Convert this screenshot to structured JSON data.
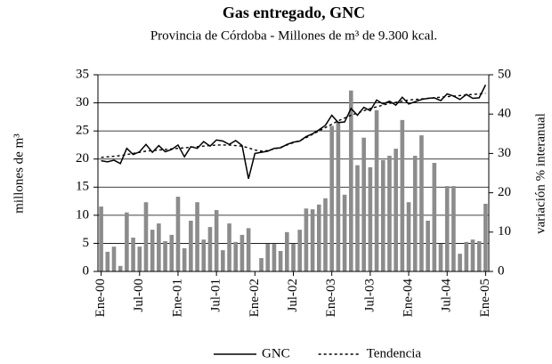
{
  "chart_data": {
    "type": "bar-line",
    "title": "Gas entregado, GNC",
    "subtitle": "Provincia de Córdoba - Millones de m³ de 9.300 kcal.",
    "ylabel": "millones de m³",
    "y2label": "variación % interanual",
    "categories": [
      "Ene-00",
      null,
      null,
      null,
      null,
      null,
      "Jul-00",
      null,
      null,
      null,
      null,
      null,
      "Ene-01",
      null,
      null,
      null,
      null,
      null,
      "Jul-01",
      null,
      null,
      null,
      null,
      null,
      "Ene-02",
      null,
      null,
      null,
      null,
      null,
      "Jul-02",
      null,
      null,
      null,
      null,
      null,
      "Ene-03",
      null,
      null,
      null,
      null,
      null,
      "Jul-03",
      null,
      null,
      null,
      null,
      null,
      "Ene-04",
      null,
      null,
      null,
      null,
      null,
      "Jul-04",
      null,
      null,
      null,
      null,
      null,
      "Ene-05"
    ],
    "series": [
      {
        "name": "GNC",
        "type": "line",
        "color": "#000000",
        "dash": "solid",
        "values": [
          19.7,
          19.5,
          19.8,
          19.2,
          21.9,
          20.8,
          21.3,
          22.6,
          21.2,
          22.4,
          21.3,
          21.7,
          22.5,
          20.4,
          22.2,
          21.9,
          23.1,
          22.3,
          23.4,
          23.2,
          22.6,
          23.3,
          22.4,
          16.5,
          21.0,
          21.2,
          21.4,
          21.9,
          22.0,
          22.6,
          23.0,
          23.2,
          24.0,
          24.5,
          25.2,
          26.0,
          27.8,
          26.5,
          26.6,
          29.0,
          27.8,
          29.2,
          28.6,
          30.5,
          29.8,
          30.3,
          29.6,
          31.0,
          29.8,
          30.2,
          30.6,
          30.8,
          30.9,
          30.4,
          31.6,
          31.2,
          30.6,
          31.5,
          30.8,
          30.9,
          33.2
        ]
      },
      {
        "name": "Tendencia",
        "type": "line",
        "color": "#000000",
        "dash": "dotted",
        "values": [
          20.3,
          20.4,
          20.5,
          20.6,
          20.8,
          21.0,
          21.2,
          21.4,
          21.5,
          21.6,
          21.7,
          21.8,
          21.9,
          22.0,
          22.1,
          22.2,
          22.3,
          22.4,
          22.5,
          22.5,
          22.5,
          22.4,
          22.3,
          22.0,
          21.6,
          21.4,
          21.5,
          21.8,
          22.1,
          22.5,
          22.9,
          23.3,
          23.8,
          24.4,
          25.0,
          25.6,
          26.2,
          26.8,
          27.3,
          27.8,
          28.2,
          28.6,
          29.0,
          29.3,
          29.6,
          29.9,
          30.1,
          30.3,
          30.5,
          30.6,
          30.7,
          30.8,
          30.9,
          31.0,
          31.1,
          31.2,
          31.3,
          31.4,
          31.5,
          31.6,
          31.7
        ]
      },
      {
        "type": "bar",
        "axis": "y2",
        "color": "#8c8c8c",
        "values": [
          16.5,
          5,
          6.3,
          1.4,
          15,
          8.6,
          6.3,
          17.6,
          10.6,
          12.2,
          7.7,
          9.3,
          19,
          5.9,
          12.9,
          17.6,
          8.1,
          11.3,
          15.6,
          5.4,
          12.2,
          7.5,
          9.3,
          11,
          0,
          3.4,
          7,
          7,
          5.2,
          10,
          7,
          10.6,
          16,
          15.8,
          17,
          18.6,
          37,
          38,
          19.5,
          46,
          27,
          34,
          26.5,
          41,
          28.3,
          29.4,
          31.2,
          38.5,
          17.6,
          29.4,
          34.6,
          12.9,
          27.6,
          7,
          21.7,
          21.7,
          4.5,
          7.5,
          8.1,
          7.7,
          17.2
        ]
      }
    ],
    "ylim": [
      0,
      35
    ],
    "yticks": [
      0,
      5,
      10,
      15,
      20,
      25,
      30,
      35
    ],
    "y2lim": [
      0,
      50
    ],
    "y2ticks": [
      0,
      10,
      20,
      30,
      40,
      50
    ],
    "grid": true,
    "legend": "bottom"
  }
}
